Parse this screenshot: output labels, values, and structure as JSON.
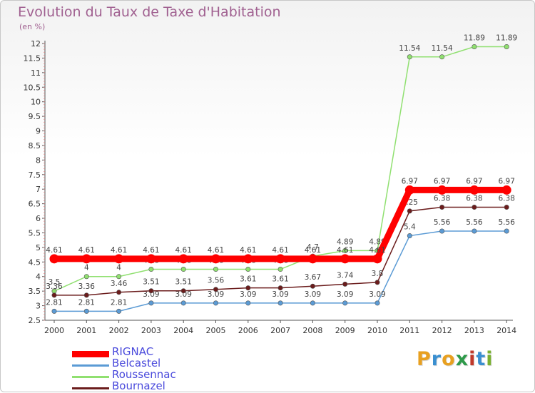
{
  "title": "Evolution du Taux de Taxe d'Habitation",
  "subtitle": "(en %)",
  "logo": {
    "text": "Proxiti",
    "colors": [
      "#e8a020",
      "#3a8fd0",
      "#e8a020",
      "#2e9a4a",
      "#c0392b",
      "#3a8fd0",
      "#7ab030"
    ]
  },
  "chart_data": {
    "type": "line",
    "title": "Evolution du Taux de Taxe d'Habitation",
    "ylabel": "(en %)",
    "xlabel": "",
    "ylim": [
      2.5,
      12
    ],
    "y_ticks": [
      "2.5",
      "3",
      "3.5",
      "4",
      "4.5",
      "5",
      "5.5",
      "6",
      "6.5",
      "7",
      "7.5",
      "8",
      "8.5",
      "9",
      "9.5",
      "10",
      "10.5",
      "11",
      "11.5",
      "12"
    ],
    "x": [
      "2000",
      "2001",
      "2002",
      "2003",
      "2004",
      "2005",
      "2006",
      "2007",
      "2008",
      "2009",
      "2010",
      "2011",
      "2012",
      "2013",
      "2014"
    ],
    "grid": false,
    "legend": "bottom-left",
    "series": [
      {
        "name": "Belcastel",
        "color": "#5b9bd5",
        "values": [
          2.81,
          2.81,
          2.81,
          3.09,
          3.09,
          3.09,
          3.09,
          3.09,
          3.09,
          3.09,
          3.09,
          5.4,
          5.56,
          5.56,
          5.56
        ],
        "labels": [
          "2.81",
          "2.81",
          "2.81",
          "3.09",
          "3.09",
          "3.09",
          "3.09",
          "3.09",
          "3.09",
          "3.09",
          "3.09",
          "5.4",
          "5.56",
          "5.56",
          "5.56"
        ]
      },
      {
        "name": "Roussennac",
        "color": "#90e070",
        "values": [
          3.5,
          4,
          4,
          4.25,
          4.25,
          4.25,
          4.25,
          4.25,
          4.7,
          4.89,
          4.89,
          11.54,
          11.54,
          11.89,
          11.89
        ],
        "labels": [
          "3.5",
          "4",
          "4",
          "4.25",
          "4.25",
          "4.25",
          "4.25",
          "4.25",
          "4.7",
          "4.89",
          "4.89",
          "11.54",
          "11.54",
          "11.89",
          "11.89"
        ]
      },
      {
        "name": "Bournazel",
        "color": "#6b1c1c",
        "values": [
          3.36,
          3.36,
          3.46,
          3.51,
          3.51,
          3.56,
          3.61,
          3.61,
          3.67,
          3.74,
          3.8,
          6.25,
          6.38,
          6.38,
          6.38
        ],
        "labels": [
          "3.36",
          "3.36",
          "3.46",
          "3.51",
          "3.51",
          "3.56",
          "3.61",
          "3.61",
          "3.67",
          "3.74",
          "3.8",
          "6.25",
          "6.38",
          "6.38",
          "6.38"
        ]
      },
      {
        "name": "RIGNAC",
        "color": "#ff0000",
        "thick": true,
        "values": [
          4.61,
          4.61,
          4.61,
          4.61,
          4.61,
          4.61,
          4.61,
          4.61,
          4.61,
          4.61,
          4.61,
          6.97,
          6.97,
          6.97,
          6.97
        ],
        "labels": [
          "4.61",
          "4.61",
          "4.61",
          "4.61",
          "4.61",
          "4.61",
          "4.61",
          "4.61",
          "4.61",
          "4.61",
          "4.61",
          "6.97",
          "6.97",
          "6.97",
          "6.97"
        ]
      }
    ],
    "legend_entries": [
      {
        "name": "RIGNAC",
        "color": "#ff0000",
        "thick": true
      },
      {
        "name": "Belcastel",
        "color": "#5b9bd5"
      },
      {
        "name": "Roussennac",
        "color": "#90e070"
      },
      {
        "name": "Bournazel",
        "color": "#6b1c1c"
      }
    ]
  }
}
